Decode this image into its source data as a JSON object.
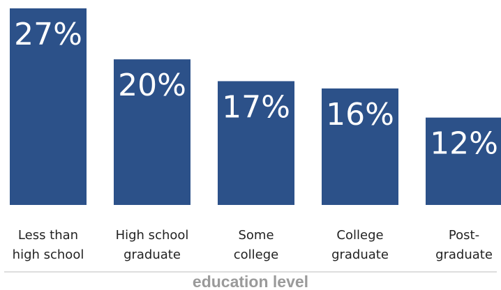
{
  "chart_data": {
    "type": "bar",
    "categories": [
      [
        "Less than",
        "high school"
      ],
      [
        "High school",
        "graduate"
      ],
      [
        "Some",
        "college"
      ],
      [
        "College",
        "graduate"
      ],
      [
        "Post-",
        "graduate"
      ]
    ],
    "values": [
      27,
      20,
      17,
      16,
      12
    ],
    "value_labels": [
      "27%",
      "20%",
      "17%",
      "16%",
      "12%"
    ],
    "title": "",
    "xlabel": "education level",
    "ylabel": "",
    "ylim": [
      0,
      27
    ],
    "grid": false,
    "legend": "none",
    "colors": {
      "bar": "#2c5189",
      "value_label": "#ffffff",
      "category_label": "#222222",
      "axis_label": "#9a9a9a",
      "divider": "#bdbdbd"
    }
  }
}
